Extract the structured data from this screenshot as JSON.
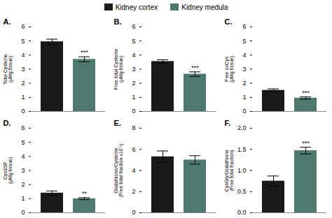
{
  "chart_data": [
    {
      "type": "bar",
      "title": "A.",
      "ylabel": "Total Cysteine\n(μMg tissue)",
      "categories": [
        null
      ],
      "series": [
        {
          "name": "Kidney cortex",
          "color": "#1a1a1a",
          "values": [
            4.95
          ],
          "errors": [
            0.18
          ]
        },
        {
          "name": "Kidney medula",
          "color": "#4d7a6e",
          "values": [
            3.7
          ],
          "errors": [
            0.18
          ],
          "annotation": "***"
        }
      ],
      "ylim": [
        0,
        6
      ],
      "yticks": [
        0,
        1,
        2,
        3,
        4,
        5,
        6
      ],
      "grid": false,
      "legend": "top",
      "tick_labels": "y"
    },
    {
      "type": "bar",
      "title": "B.",
      "ylabel": "Free total Cysteine\n(μMg tissue)",
      "categories": [
        null
      ],
      "series": [
        {
          "name": "Kidney cortex",
          "color": "#1a1a1a",
          "values": [
            3.55
          ],
          "errors": [
            0.12
          ]
        },
        {
          "name": "Kidney medula",
          "color": "#4d7a6e",
          "values": [
            2.65
          ],
          "errors": [
            0.16
          ],
          "annotation": "***"
        }
      ],
      "ylim": [
        0,
        6
      ],
      "yticks": [
        0,
        1,
        2,
        3,
        4,
        5,
        6
      ],
      "grid": false,
      "legend": "top",
      "tick_labels": "y"
    },
    {
      "type": "bar",
      "title": "C.",
      "ylabel": "Free oxCys\n(μMg tissue)",
      "categories": [
        null
      ],
      "series": [
        {
          "name": "Kidney cortex",
          "color": "#1a1a1a",
          "values": [
            1.5
          ],
          "errors": [
            0.1
          ]
        },
        {
          "name": "Kidney medula",
          "color": "#4d7a6e",
          "values": [
            0.95
          ],
          "errors": [
            0.08
          ],
          "annotation": "***"
        }
      ],
      "ylim": [
        0,
        6
      ],
      "yticks": [
        0,
        1,
        2,
        3,
        4,
        5,
        6
      ],
      "grid": false,
      "legend": "top",
      "tick_labels": "y"
    },
    {
      "type": "bar",
      "title": "D.",
      "ylabel": "CysSSP\n(μMg tissue)",
      "categories": [
        null
      ],
      "series": [
        {
          "name": "Kidney cortex",
          "color": "#1a1a1a",
          "values": [
            1.4
          ],
          "errors": [
            0.15
          ]
        },
        {
          "name": "Kidney medula",
          "color": "#4d7a6e",
          "values": [
            1.0
          ],
          "errors": [
            0.07
          ],
          "annotation": "**"
        }
      ],
      "ylim": [
        0,
        6
      ],
      "yticks": [
        0,
        1,
        2,
        3,
        4,
        5,
        6
      ],
      "grid": false,
      "legend": "top",
      "tick_labels": "y"
    },
    {
      "type": "bar",
      "title": "E.",
      "ylabel": "Glutathione/Cysteine\n(Free total fraction x10⁻¹)",
      "categories": [
        null
      ],
      "series": [
        {
          "name": "Kidney cortex",
          "color": "#1a1a1a",
          "values": [
            5.3
          ],
          "errors": [
            0.55
          ]
        },
        {
          "name": "Kidney medula",
          "color": "#4d7a6e",
          "values": [
            5.0
          ],
          "errors": [
            0.4
          ]
        }
      ],
      "ylim": [
        0,
        8
      ],
      "yticks": [
        0,
        2,
        4,
        6,
        8
      ],
      "grid": false,
      "legend": "top",
      "tick_labels": "y"
    },
    {
      "type": "bar",
      "title": "F.",
      "ylabel": "CysGly/Glutathione\n(Free total fraction)",
      "categories": [
        null
      ],
      "series": [
        {
          "name": "Kidney cortex",
          "color": "#1a1a1a",
          "values": [
            0.75
          ],
          "errors": [
            0.12
          ]
        },
        {
          "name": "Kidney medula",
          "color": "#4d7a6e",
          "values": [
            1.47
          ],
          "errors": [
            0.08
          ],
          "annotation": "***"
        }
      ],
      "ylim": [
        0.0,
        2.0
      ],
      "yticks": [
        {
          "value": 0.0,
          "label": "0.0"
        },
        {
          "value": 0.5,
          "label": "0.5"
        },
        {
          "value": 1.0,
          "label": "1.0"
        },
        {
          "value": 1.5,
          "label": "1.5"
        },
        {
          "value": 2.0,
          "label": "2.0"
        }
      ],
      "grid": false,
      "legend": "top",
      "tick_labels": "y"
    }
  ]
}
